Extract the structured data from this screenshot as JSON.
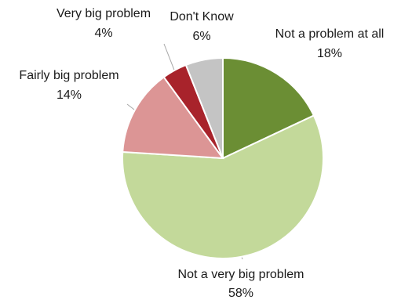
{
  "chart_data": {
    "type": "pie",
    "slices": [
      {
        "label": "Not a problem at all",
        "value": 18,
        "value_label": "18%",
        "color": "#6b8e34"
      },
      {
        "label": "Not a very big problem",
        "value": 58,
        "value_label": "58%",
        "color": "#c3d99a"
      },
      {
        "label": "Fairly big problem",
        "value": 14,
        "value_label": "14%",
        "color": "#dc9595"
      },
      {
        "label": "Very big problem",
        "value": 4,
        "value_label": "4%",
        "color": "#a8232b"
      },
      {
        "label": "Don't Know",
        "value": 6,
        "value_label": "6%",
        "color": "#c4c4c4"
      }
    ],
    "start": "12 o'clock",
    "direction": "clockwise",
    "legend": "none",
    "data_labels": "outside"
  }
}
